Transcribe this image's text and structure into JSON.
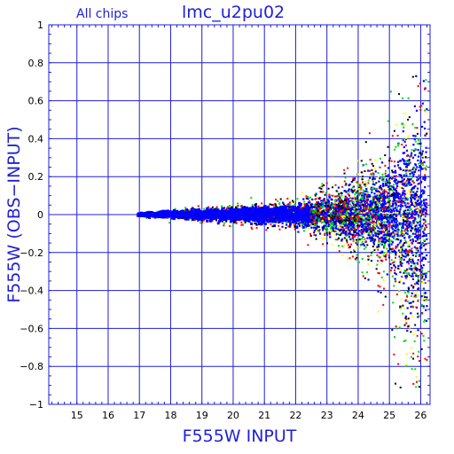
{
  "chart_data": {
    "type": "scatter",
    "title": "lmc_u2pu02",
    "subtitle": "All chips",
    "xlabel": "F555W INPUT",
    "ylabel": "F555W (OBS−INPUT)",
    "xlim": [
      14.1,
      26.3
    ],
    "ylim": [
      -1,
      1
    ],
    "x_ticks": [
      "15",
      "16",
      "17",
      "18",
      "19",
      "20",
      "21",
      "22",
      "23",
      "24",
      "25",
      "26"
    ],
    "y_ticks": [
      "1",
      "0.8",
      "0.6",
      "0.4",
      "0.2",
      "0",
      "−0.2",
      "−0.4",
      "−0.6",
      "−0.8",
      "−1"
    ],
    "grid": true,
    "legend": "none",
    "series": [
      {
        "color": "#0000ff",
        "x_range": [
          16.95,
          26.2
        ],
        "scatter_y_min": 0.01,
        "scatter_y_max": 0.32
      },
      {
        "color": "#00dd00",
        "x_range": [
          17.0,
          26.2
        ]
      },
      {
        "color": "#ff0000",
        "x_range": [
          17.0,
          26.2
        ]
      },
      {
        "color": "#000000",
        "x_range": [
          17.0,
          26.2
        ]
      },
      {
        "color": "#ffff00",
        "x_range": [
          20.5,
          26.2
        ]
      }
    ]
  },
  "colors": {
    "frame": "#1f1fd6",
    "grid": "#1f1fd6",
    "text": "#1f1fd6"
  }
}
